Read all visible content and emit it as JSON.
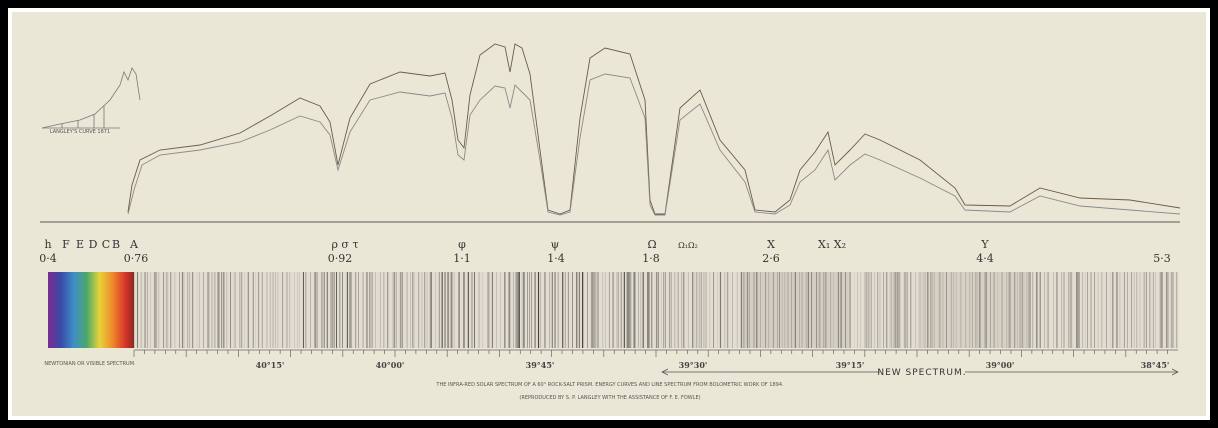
{
  "inset": {
    "label": "LANGLEY'S CURVE 1871"
  },
  "lines": {
    "letters": [
      "h",
      "F",
      "E",
      "D",
      "C",
      "B",
      "A"
    ],
    "bands": [
      "ρ σ τ",
      "φ",
      "ψ",
      "Ω",
      "Ω₁Ω₂",
      "X",
      "X₁ X₂",
      "Y"
    ],
    "wavelengths": [
      "0·4",
      "0·76",
      "0·92",
      "1·1",
      "1·4",
      "1·8",
      "2·6",
      "4·4",
      "5·3"
    ]
  },
  "scale": {
    "visible": "NEWTONIAN OR VISIBLE SPECTRUM.",
    "angles": [
      "40°15'",
      "40°00'",
      "39°45'",
      "39°30'",
      "39°15'",
      "39°00'",
      "38°45'"
    ],
    "new": "NEW SPECTRUM."
  },
  "caption": [
    "THE INFRA-RED SOLAR SPECTRUM OF A 60° ROCK-SALT PRISM. ENERGY CURVES AND LINE SPECTRUM FROM BOLOMETRIC WORK OF 1894.",
    "(REPRODUCED BY S. P. LANGLEY WITH THE ASSISTANCE OF F. E. FOWLE)"
  ]
}
